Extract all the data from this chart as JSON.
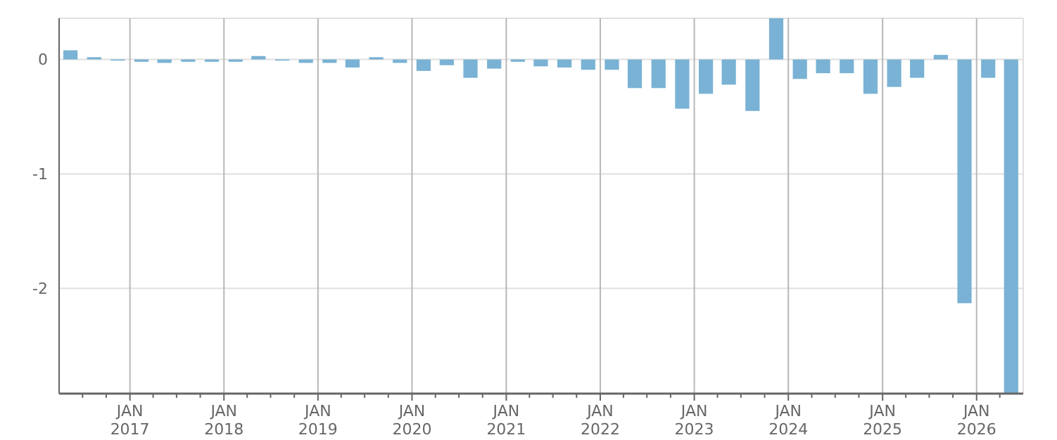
{
  "chart_data": {
    "type": "bar",
    "color": "#79b2d4",
    "grid": true,
    "x": [
      "2016-05-15",
      "2016-08-15",
      "2016-11-15",
      "2017-02-15",
      "2017-05-15",
      "2017-08-15",
      "2017-11-15",
      "2018-02-15",
      "2018-05-15",
      "2018-08-15",
      "2018-11-15",
      "2019-02-15",
      "2019-05-15",
      "2019-08-15",
      "2019-11-15",
      "2020-02-15",
      "2020-05-15",
      "2020-08-15",
      "2020-11-15",
      "2021-02-15",
      "2021-05-15",
      "2021-08-15",
      "2021-11-15",
      "2022-02-15",
      "2022-05-15",
      "2022-08-15",
      "2022-11-15",
      "2023-02-15",
      "2023-05-15",
      "2023-08-15",
      "2023-11-15",
      "2024-02-15",
      "2024-05-15",
      "2024-08-15",
      "2024-11-15",
      "2025-02-15",
      "2025-05-15",
      "2025-08-15",
      "2025-11-15",
      "2026-02-15",
      "2026-05-15"
    ],
    "values": [
      0.08,
      0.02,
      -0.01,
      -0.02,
      -0.03,
      -0.02,
      -0.02,
      -0.02,
      0.03,
      -0.01,
      -0.03,
      -0.03,
      -0.07,
      0.02,
      -0.03,
      -0.1,
      -0.05,
      -0.16,
      -0.08,
      -0.02,
      -0.06,
      -0.07,
      -0.09,
      -0.09,
      -0.25,
      -0.25,
      -0.43,
      -0.3,
      -0.22,
      -0.45,
      0.36,
      -0.17,
      -0.12,
      -0.12,
      -0.3,
      -0.24,
      -0.16,
      0.04,
      -2.13,
      -0.16,
      -2.92
    ],
    "xlim": [
      "2016-04-01",
      "2026-07-01"
    ],
    "xticks": [
      {
        "value": "2016-07-01",
        "label": null
      },
      {
        "value": "2016-10-01",
        "label": null
      },
      {
        "value": "2017-01-01",
        "label": "JAN 2017"
      },
      {
        "value": "2017-04-01",
        "label": null
      },
      {
        "value": "2017-07-01",
        "label": null
      },
      {
        "value": "2017-10-01",
        "label": null
      },
      {
        "value": "2018-01-01",
        "label": "JAN 2018"
      },
      {
        "value": "2018-04-01",
        "label": null
      },
      {
        "value": "2018-07-01",
        "label": null
      },
      {
        "value": "2018-10-01",
        "label": null
      },
      {
        "value": "2019-01-01",
        "label": "JAN 2019"
      },
      {
        "value": "2019-04-01",
        "label": null
      },
      {
        "value": "2019-07-01",
        "label": null
      },
      {
        "value": "2019-10-01",
        "label": null
      },
      {
        "value": "2020-01-01",
        "label": "JAN 2020"
      },
      {
        "value": "2020-04-01",
        "label": null
      },
      {
        "value": "2020-07-01",
        "label": null
      },
      {
        "value": "2020-10-01",
        "label": null
      },
      {
        "value": "2021-01-01",
        "label": "JAN 2021"
      },
      {
        "value": "2021-04-01",
        "label": null
      },
      {
        "value": "2021-07-01",
        "label": null
      },
      {
        "value": "2021-10-01",
        "label": null
      },
      {
        "value": "2022-01-01",
        "label": "JAN 2022"
      },
      {
        "value": "2022-04-01",
        "label": null
      },
      {
        "value": "2022-07-01",
        "label": null
      },
      {
        "value": "2022-10-01",
        "label": null
      },
      {
        "value": "2023-01-01",
        "label": "JAN 2023"
      },
      {
        "value": "2023-04-01",
        "label": null
      },
      {
        "value": "2023-07-01",
        "label": null
      },
      {
        "value": "2023-10-01",
        "label": null
      },
      {
        "value": "2024-01-01",
        "label": "JAN 2024"
      },
      {
        "value": "2024-04-01",
        "label": null
      },
      {
        "value": "2024-07-01",
        "label": null
      },
      {
        "value": "2024-10-01",
        "label": null
      },
      {
        "value": "2025-01-01",
        "label": "JAN 2025"
      },
      {
        "value": "2025-04-01",
        "label": null
      },
      {
        "value": "2025-07-01",
        "label": null
      },
      {
        "value": "2025-10-01",
        "label": null
      },
      {
        "value": "2026-01-01",
        "label": "JAN 2026"
      },
      {
        "value": "2026-04-01",
        "label": null
      }
    ],
    "ylim": [
      -2.92,
      0.36
    ],
    "yticks": [
      0,
      -1,
      -2
    ]
  }
}
